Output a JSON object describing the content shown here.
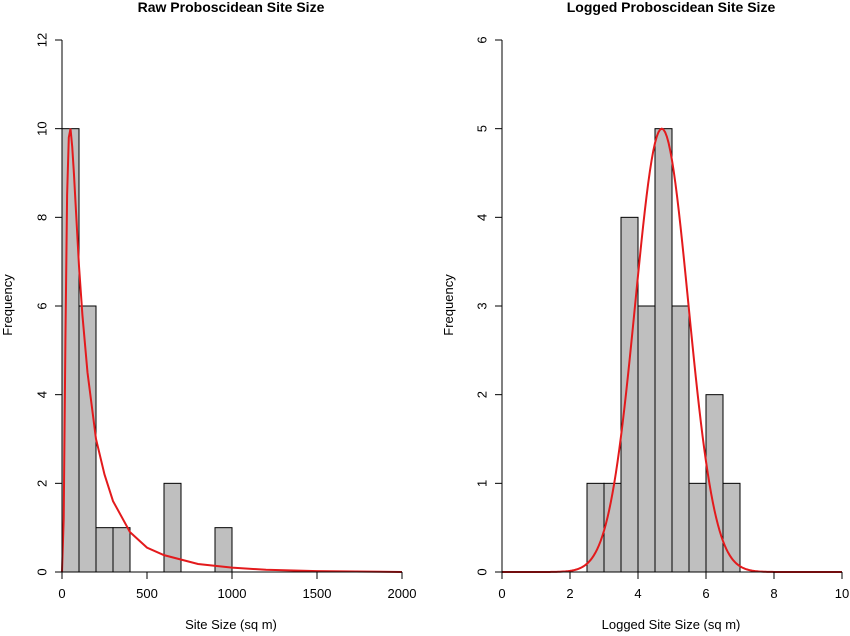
{
  "chart_data": [
    {
      "type": "bar",
      "title": "Raw Proboscidean Site Size",
      "xlabel": "Site Size (sq m)",
      "ylabel": "Frequency",
      "xlim": [
        0,
        2000
      ],
      "ylim": [
        0,
        12
      ],
      "x_ticks": [
        0,
        500,
        1000,
        1500,
        2000
      ],
      "y_ticks": [
        0,
        2,
        4,
        6,
        8,
        10,
        12
      ],
      "bins": [
        {
          "start": 0,
          "end": 100,
          "count": 10
        },
        {
          "start": 100,
          "end": 200,
          "count": 6
        },
        {
          "start": 200,
          "end": 300,
          "count": 1
        },
        {
          "start": 300,
          "end": 400,
          "count": 1
        },
        {
          "start": 400,
          "end": 500,
          "count": 0
        },
        {
          "start": 500,
          "end": 600,
          "count": 0
        },
        {
          "start": 600,
          "end": 700,
          "count": 2
        },
        {
          "start": 700,
          "end": 800,
          "count": 0
        },
        {
          "start": 800,
          "end": 900,
          "count": 0
        },
        {
          "start": 900,
          "end": 1000,
          "count": 1
        }
      ],
      "curve": {
        "color": "#e31a1c",
        "x": [
          0,
          10,
          20,
          30,
          40,
          50,
          60,
          70,
          80,
          100,
          120,
          150,
          200,
          250,
          300,
          400,
          500,
          600,
          800,
          1000,
          1200,
          1500,
          2000
        ],
        "y": [
          0,
          1.2,
          5.2,
          8.5,
          9.8,
          10.0,
          9.6,
          9.0,
          8.3,
          6.9,
          5.8,
          4.5,
          3.0,
          2.2,
          1.6,
          0.9,
          0.55,
          0.38,
          0.18,
          0.1,
          0.05,
          0.02,
          0.0
        ]
      },
      "grid": false,
      "legend": "none"
    },
    {
      "type": "bar",
      "title": "Logged Proboscidean Site Size",
      "xlabel": "Logged Site Size (sq m)",
      "ylabel": "Frequency",
      "xlim": [
        0,
        10
      ],
      "ylim": [
        0,
        6
      ],
      "x_ticks": [
        0,
        2,
        4,
        6,
        8,
        10
      ],
      "y_ticks": [
        0,
        1,
        2,
        3,
        4,
        5,
        6
      ],
      "bins": [
        {
          "start": 2.5,
          "end": 3.0,
          "count": 1
        },
        {
          "start": 3.0,
          "end": 3.5,
          "count": 1
        },
        {
          "start": 3.5,
          "end": 4.0,
          "count": 4
        },
        {
          "start": 4.0,
          "end": 4.5,
          "count": 3
        },
        {
          "start": 4.5,
          "end": 5.0,
          "count": 5
        },
        {
          "start": 5.0,
          "end": 5.5,
          "count": 3
        },
        {
          "start": 5.5,
          "end": 6.0,
          "count": 1
        },
        {
          "start": 6.0,
          "end": 6.5,
          "count": 2
        },
        {
          "start": 6.5,
          "end": 7.0,
          "count": 1
        }
      ],
      "curve": {
        "color": "#e31a1c",
        "type": "normal",
        "mean": 4.7,
        "sd": 0.78,
        "peak": 5.0
      },
      "grid": false,
      "legend": "none"
    }
  ]
}
